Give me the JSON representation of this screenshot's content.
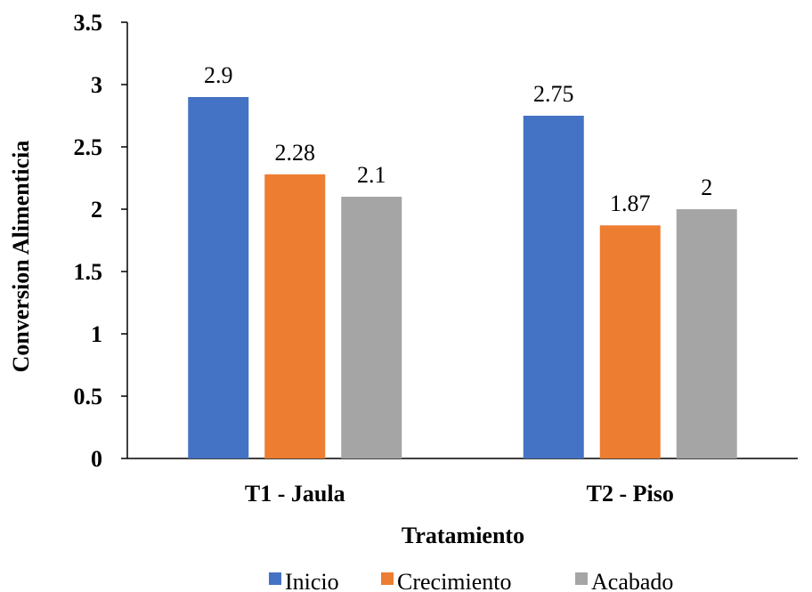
{
  "chart_data": {
    "type": "bar",
    "categories": [
      "T1 - Jaula",
      "T2 - Piso"
    ],
    "series": [
      {
        "name": "Inicio",
        "values": [
          2.9,
          2.75
        ],
        "labels": [
          "2.9",
          "2.75"
        ],
        "color": "#4472C4"
      },
      {
        "name": "Crecimiento",
        "values": [
          2.28,
          1.87
        ],
        "labels": [
          "2.28",
          "1.87"
        ],
        "color": "#ED7D31"
      },
      {
        "name": "Acabado",
        "values": [
          2.1,
          2.0
        ],
        "labels": [
          "2.1",
          "2"
        ],
        "color": "#A5A5A5"
      }
    ],
    "xlabel": "Tratamiento",
    "ylabel": "Conversion Alimenticia",
    "ylim": [
      0,
      3.5
    ],
    "yticks": [
      "0",
      "0.5",
      "1",
      "1.5",
      "2",
      "2.5",
      "3",
      "3.5"
    ],
    "grid": false,
    "legend_position": "bottom"
  }
}
